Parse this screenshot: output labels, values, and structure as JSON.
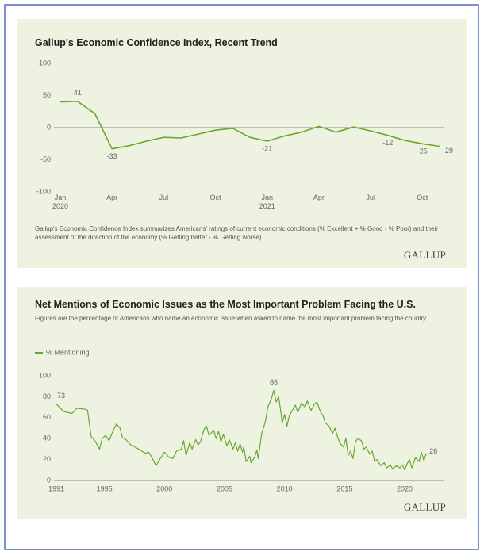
{
  "chart_data": [
    {
      "type": "line",
      "title": "Gallup's Economic Confidence Index, Recent Trend",
      "note": "Gallup's Economic Confidence Index summarizes Americans' ratings of current economic conditions (% Excellent + % Good - % Poor) and their assessment of the direction of the economy (% Getting better - % Getting worse)",
      "logo": "GALLUP",
      "categories": [
        "Jan\n2020",
        null,
        null,
        "Apr",
        null,
        null,
        "Jul",
        null,
        null,
        "Oct",
        null,
        null,
        "Jan\n2021",
        null,
        null,
        "Apr",
        null,
        null,
        "Jul",
        null,
        null,
        "Oct",
        null
      ],
      "values": [
        40,
        41,
        22,
        -33,
        -28,
        -21,
        -15,
        -16,
        -10,
        -4,
        -1,
        -15,
        -21,
        -13,
        -7,
        2,
        -7,
        1,
        -5,
        -12,
        -20,
        -25,
        -29
      ],
      "value_labels": [
        null,
        "41",
        null,
        "-33",
        null,
        null,
        null,
        null,
        null,
        null,
        null,
        null,
        "-21",
        null,
        null,
        null,
        null,
        null,
        null,
        "-12",
        null,
        "-25",
        "-29"
      ],
      "color": "#66a832",
      "ylim": [
        -100,
        100
      ],
      "yticks": [
        100,
        50,
        0,
        -50,
        -100
      ],
      "grid": false
    },
    {
      "type": "line",
      "title": "Net Mentions of Economic Issues as the Most Important Problem Facing the U.S.",
      "subtitle": "Figures are the percentage of Americans who name an economic issue when asked to name the most important problem facing the country",
      "logo": "GALLUP",
      "legend": "top-left",
      "x": [
        1991.0,
        1991.6,
        1992.3,
        1992.7,
        1993.4,
        1993.6,
        1993.9,
        1994.2,
        1994.6,
        1994.8,
        1995.1,
        1995.4,
        1995.7,
        1996.0,
        1996.3,
        1996.5,
        1996.8,
        1997.2,
        1997.7,
        1998.0,
        1998.4,
        1998.7,
        1999.0,
        1999.3,
        1999.6,
        2000.0,
        2000.4,
        2000.7,
        2001.0,
        2001.4,
        2001.6,
        2001.8,
        2002.1,
        2002.3,
        2002.6,
        2002.8,
        2003.0,
        2003.3,
        2003.5,
        2003.7,
        2004.1,
        2004.3,
        2004.5,
        2004.7,
        2004.9,
        2005.2,
        2005.4,
        2005.7,
        2005.9,
        2006.1,
        2006.3,
        2006.5,
        2006.6,
        2006.8,
        2007.1,
        2007.2,
        2007.5,
        2007.7,
        2007.8,
        2008.1,
        2008.4,
        2008.6,
        2008.9,
        2009.1,
        2009.3,
        2009.5,
        2009.7,
        2009.8,
        2010.0,
        2010.2,
        2010.4,
        2010.7,
        2010.9,
        2011.1,
        2011.4,
        2011.7,
        2011.9,
        2012.2,
        2012.5,
        2012.7,
        2013.0,
        2013.2,
        2013.4,
        2013.7,
        2014.0,
        2014.2,
        2014.4,
        2014.6,
        2014.9,
        2015.1,
        2015.3,
        2015.5,
        2015.7,
        2015.9,
        2016.1,
        2016.4,
        2016.6,
        2016.8,
        2017.1,
        2017.3,
        2017.5,
        2017.7,
        2018.0,
        2018.3,
        2018.5,
        2018.8,
        2019.0,
        2019.3,
        2019.6,
        2019.8,
        2020.0,
        2020.2,
        2020.4,
        2020.6,
        2020.9,
        2021.2,
        2021.4,
        2021.6,
        2021.8
      ],
      "series": [
        {
          "name": "% Mentioning",
          "color": "#66a832",
          "values": [
            73,
            66,
            64,
            69,
            68,
            67,
            42,
            38,
            30,
            40,
            43,
            38,
            47,
            54,
            50,
            41,
            39,
            34,
            31,
            29,
            26,
            27,
            21,
            14,
            20,
            27,
            22,
            21,
            28,
            30,
            38,
            24,
            36,
            30,
            39,
            34,
            37,
            49,
            52,
            43,
            48,
            40,
            47,
            37,
            44,
            33,
            39,
            30,
            36,
            28,
            35,
            27,
            32,
            18,
            23,
            17,
            22,
            29,
            21,
            45,
            56,
            70,
            78,
            86,
            75,
            80,
            65,
            55,
            63,
            52,
            62,
            68,
            72,
            65,
            74,
            70,
            76,
            67,
            73,
            75,
            65,
            62,
            55,
            52,
            45,
            50,
            42,
            36,
            32,
            40,
            24,
            28,
            21,
            37,
            40,
            38,
            30,
            32,
            25,
            28,
            18,
            20,
            14,
            17,
            12,
            15,
            11,
            14,
            12,
            15,
            10,
            16,
            20,
            12,
            22,
            18,
            27,
            19,
            26
          ],
          "value_labels": [
            "73",
            null,
            null,
            null,
            null,
            null,
            null,
            null,
            null,
            null,
            null,
            null,
            null,
            null,
            null,
            null,
            null,
            null,
            null,
            null,
            null,
            null,
            null,
            null,
            null,
            null,
            null,
            null,
            null,
            null,
            null,
            null,
            null,
            null,
            null,
            null,
            null,
            null,
            null,
            null,
            null,
            null,
            null,
            null,
            null,
            null,
            null,
            null,
            null,
            null,
            null,
            null,
            null,
            null,
            null,
            null,
            null,
            null,
            null,
            null,
            null,
            null,
            null,
            "86",
            null,
            null,
            null,
            null,
            null,
            null,
            null,
            null,
            null,
            null,
            null,
            null,
            null,
            null,
            null,
            null,
            null,
            null,
            null,
            null,
            null,
            null,
            null,
            null,
            null,
            null,
            null,
            null,
            null,
            null,
            null,
            null,
            null,
            null,
            null,
            null,
            null,
            null,
            null,
            null,
            null,
            null,
            null,
            null,
            null,
            null,
            null,
            null,
            null,
            null,
            null,
            null,
            null,
            null,
            "26"
          ]
        }
      ],
      "xlim": [
        1990.8,
        2023.3
      ],
      "xticks": [
        1991,
        1995,
        2000,
        2005,
        2010,
        2015,
        2020
      ],
      "ylim": [
        0,
        100
      ],
      "yticks": [
        0,
        20,
        40,
        60,
        80,
        100
      ],
      "grid": false
    }
  ]
}
